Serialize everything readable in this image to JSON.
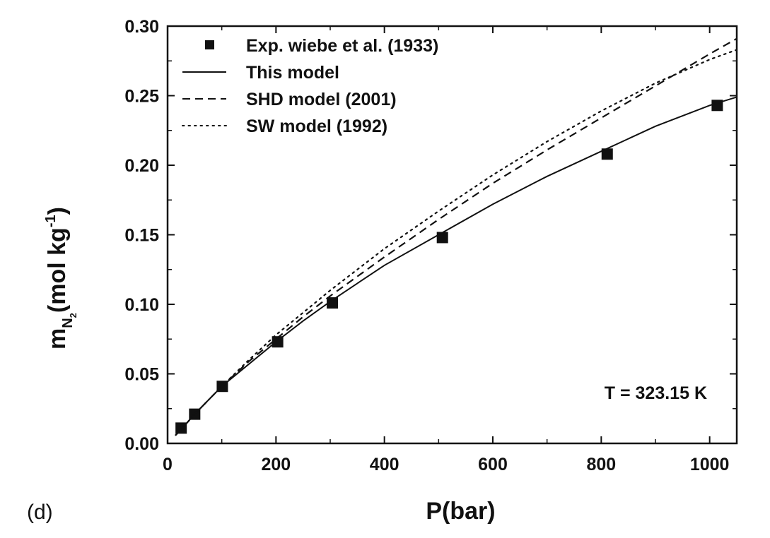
{
  "chart_data": {
    "type": "line",
    "panel_label": "(d)",
    "xlabel": "P(bar)",
    "ylabel": {
      "main": "m",
      "sub": "N",
      "subsub": "2",
      "unit_prefix": "(mol kg",
      "unit_exp": "-1",
      "unit_suffix": ")"
    },
    "xlim": [
      0,
      1050
    ],
    "ylim": [
      0,
      0.3
    ],
    "x_ticks": [
      0,
      200,
      400,
      600,
      800,
      1000
    ],
    "x_tick_labels": [
      "0",
      "200",
      "400",
      "600",
      "800",
      "1000"
    ],
    "x_minor_step": 100,
    "y_ticks": [
      0.0,
      0.05,
      0.1,
      0.15,
      0.2,
      0.25,
      0.3
    ],
    "y_tick_labels": [
      "0.00",
      "0.05",
      "0.10",
      "0.15",
      "0.20",
      "0.25",
      "0.30"
    ],
    "y_minor_step": 0.025,
    "grid": false,
    "legend_position": "top-left",
    "annotation": "T = 323.15 K",
    "series": [
      {
        "name": "Exp. wiebe et al. (1933)",
        "kind": "markers",
        "marker": "square",
        "x": [
          25,
          50,
          101,
          203,
          304,
          507,
          811,
          1014
        ],
        "y": [
          0.011,
          0.021,
          0.041,
          0.073,
          0.101,
          0.148,
          0.208,
          0.243
        ]
      },
      {
        "name": "This model",
        "kind": "line",
        "dash": "solid",
        "x": [
          15,
          25,
          50,
          100,
          150,
          200,
          250,
          300,
          350,
          400,
          500,
          600,
          700,
          800,
          900,
          1000,
          1050
        ],
        "y": [
          0.006,
          0.01,
          0.021,
          0.041,
          0.057,
          0.073,
          0.088,
          0.102,
          0.115,
          0.128,
          0.15,
          0.172,
          0.192,
          0.21,
          0.228,
          0.243,
          0.249
        ]
      },
      {
        "name": "SHD model (2001)",
        "kind": "line",
        "dash": "dashed",
        "x": [
          15,
          25,
          50,
          100,
          150,
          200,
          250,
          300,
          350,
          400,
          500,
          600,
          700,
          800,
          900,
          1000,
          1050
        ],
        "y": [
          0.006,
          0.01,
          0.021,
          0.041,
          0.059,
          0.075,
          0.091,
          0.106,
          0.12,
          0.134,
          0.161,
          0.187,
          0.211,
          0.234,
          0.257,
          0.28,
          0.291
        ]
      },
      {
        "name": "SW model (1992)",
        "kind": "line",
        "dash": "dotted",
        "x": [
          15,
          25,
          50,
          100,
          150,
          200,
          250,
          300,
          350,
          400,
          500,
          600,
          700,
          800,
          900,
          1000,
          1050
        ],
        "y": [
          0.006,
          0.01,
          0.021,
          0.041,
          0.06,
          0.078,
          0.094,
          0.11,
          0.125,
          0.14,
          0.167,
          0.193,
          0.217,
          0.239,
          0.259,
          0.276,
          0.283
        ]
      }
    ]
  }
}
